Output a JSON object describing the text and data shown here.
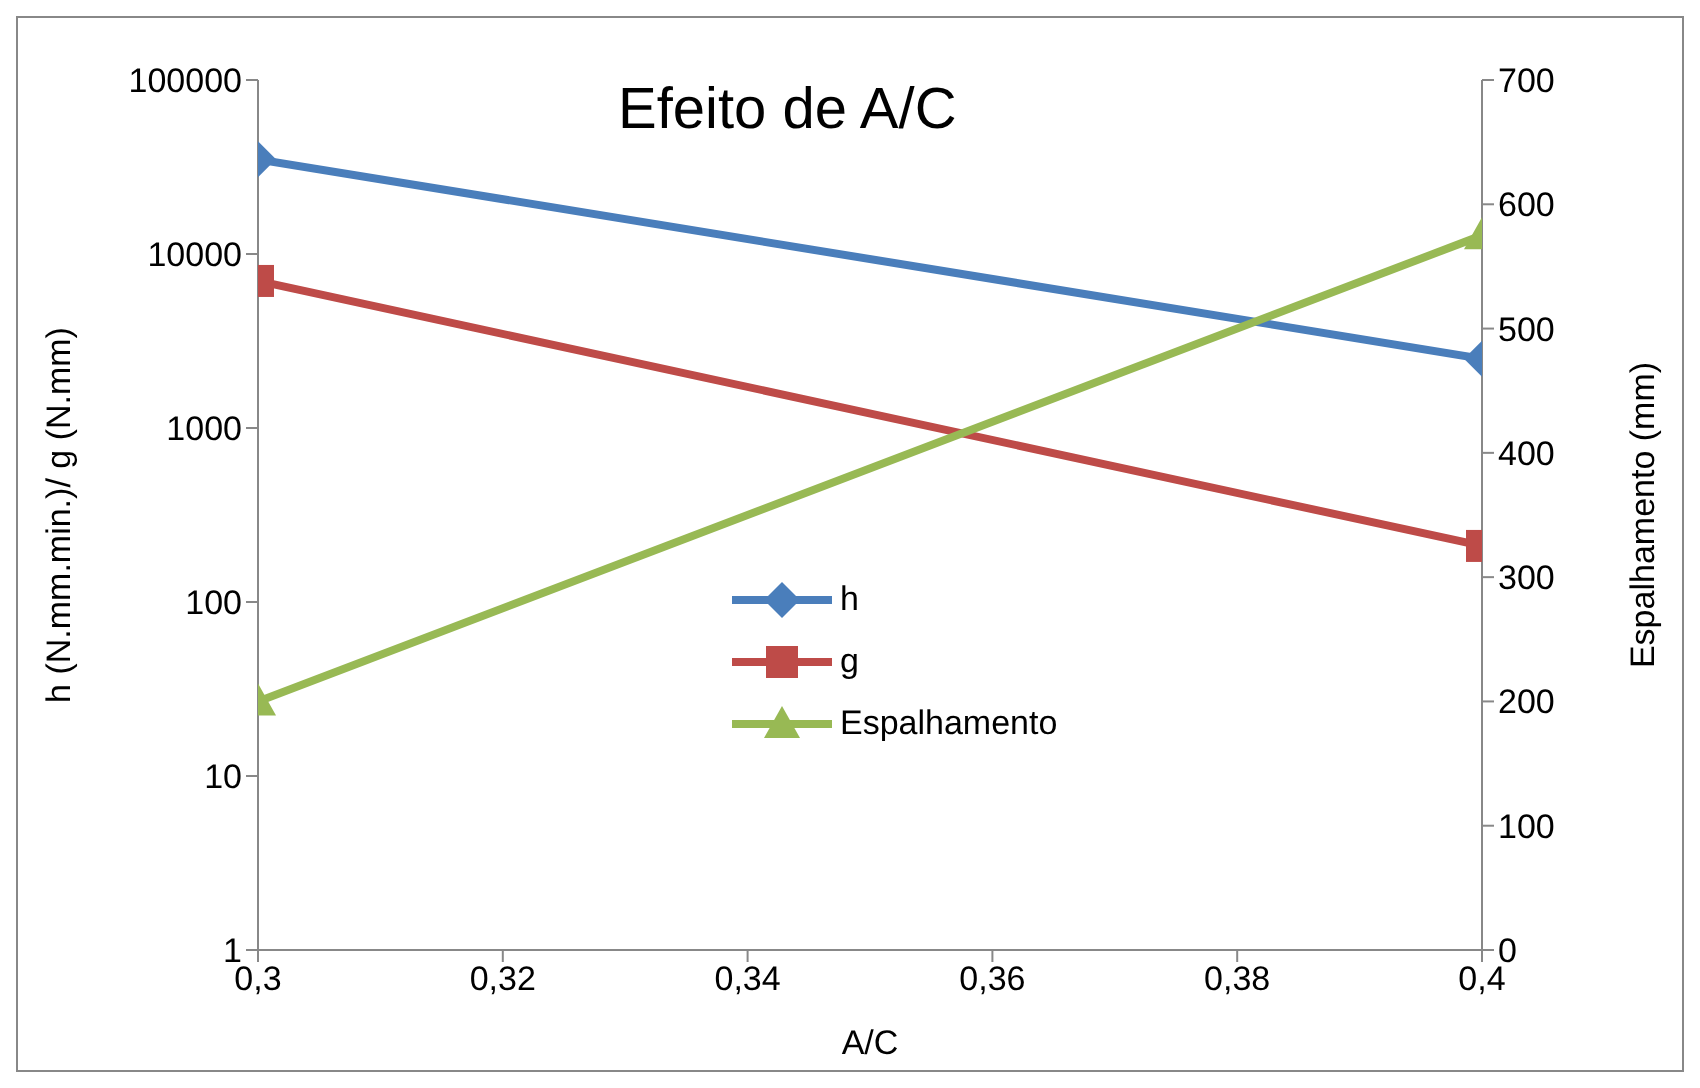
{
  "chart_data": {
    "type": "line",
    "title": "Efeito de A/C",
    "xlabel": "A/C",
    "ylabel": "h (N.mm.min.)/ g (N.mm)",
    "y2label": "Espalhamento (mm)",
    "x": [
      0.3,
      0.4
    ],
    "series": [
      {
        "name": "h",
        "color": "#4a7ebb",
        "values": [
          35000,
          2500
        ],
        "marker": "diamond"
      },
      {
        "name": "g",
        "color": "#be4b48",
        "values": [
          7000,
          210
        ],
        "marker": "square"
      },
      {
        "name": "Espalhamento",
        "color": "#98b954",
        "values": [
          200,
          575
        ],
        "marker": "triangle",
        "axis": "y2"
      }
    ],
    "log": "y",
    "xlim": [
      0.3,
      0.4
    ],
    "xticks": [
      {
        "value": 0.3,
        "label": "0,3"
      },
      {
        "value": 0.32,
        "label": "0,32"
      },
      {
        "value": 0.34,
        "label": "0,34"
      },
      {
        "value": 0.36,
        "label": "0,36"
      },
      {
        "value": 0.38,
        "label": "0,38"
      },
      {
        "value": 0.4,
        "label": "0,4"
      }
    ],
    "ylim": [
      1,
      100000
    ],
    "yticks": [
      1,
      10,
      100,
      1000,
      10000,
      100000
    ],
    "y2lim": [
      0,
      700
    ],
    "y2ticks": [
      0,
      100,
      200,
      300,
      400,
      500,
      600,
      700
    ],
    "grid": false,
    "legend": "center",
    "line_style": "solid"
  }
}
